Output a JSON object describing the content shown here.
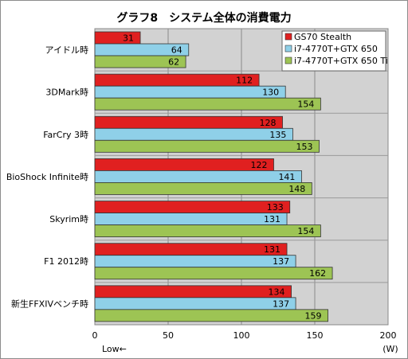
{
  "chart_data": {
    "type": "bar",
    "orientation": "horizontal",
    "title": "グラフ8　システム全体の消費電力",
    "categories": [
      "アイドル時",
      "3DMark時",
      "FarCry 3時",
      "BioShock Infinite時",
      "Skyrim時",
      "F1 2012時",
      "新生FFXIVベンチ時"
    ],
    "series": [
      {
        "name": "GS70 Stealth",
        "color": "#e02020",
        "values": [
          31,
          112,
          128,
          122,
          133,
          131,
          134
        ]
      },
      {
        "name": "i7-4770T+GTX 650",
        "color": "#8fd0e8",
        "values": [
          64,
          130,
          135,
          141,
          131,
          137,
          137
        ]
      },
      {
        "name": "i7-4770T+GTX 650 Ti",
        "color": "#9dc454",
        "values": [
          62,
          154,
          153,
          148,
          154,
          162,
          159
        ]
      }
    ],
    "xlim": [
      0,
      200
    ],
    "xticks": [
      "0",
      "50",
      "100",
      "150",
      "200"
    ],
    "x_unit": "(W)",
    "x_note": "Low←",
    "grid": true,
    "legend_position": "top-right"
  }
}
